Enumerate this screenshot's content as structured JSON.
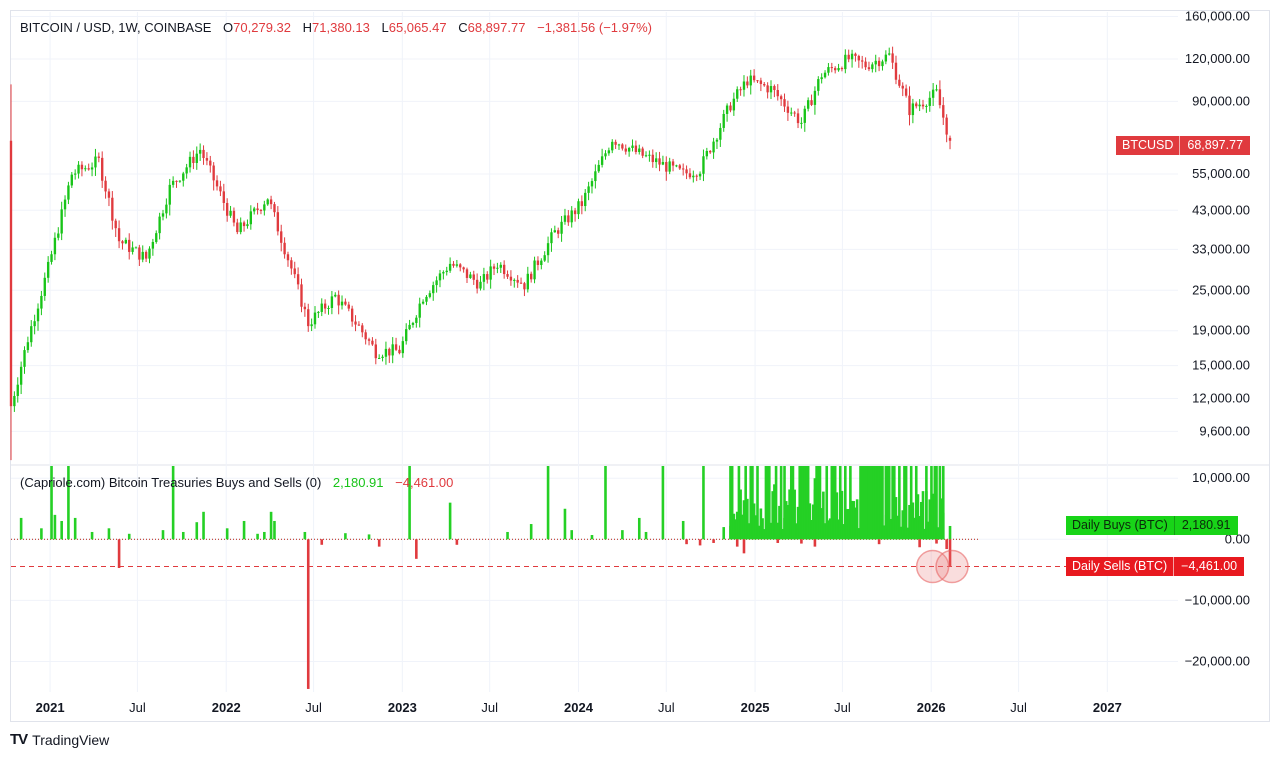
{
  "legend_price": {
    "symbol": "BITCOIN / USD, 1W, COINBASE",
    "o_label": "O",
    "o_value": "70,279.32",
    "h_label": "H",
    "h_value": "71,380.13",
    "l_label": "L",
    "l_value": "65,065.47",
    "c_label": "C",
    "c_value": "68,897.77",
    "change": "−1,381.56 (−1.97%)"
  },
  "legend_indicator": {
    "name": "(Capriole.com) Bitcoin Treasuries Buys and Sells (0)",
    "buy_value": "2,180.91",
    "sell_value": "−4,461.00"
  },
  "badges": {
    "price_label": "BTCUSD",
    "price_value": "68,897.77",
    "buys_label": "Daily Buys (BTC)",
    "buys_value": "2,180.91",
    "sells_label": "Daily Sells (BTC)",
    "sells_value": "−4,461.00"
  },
  "brand": {
    "name": "TradingView"
  },
  "colors": {
    "up": "#18c418",
    "down": "#e03a3e",
    "grid": "#f0f3fa",
    "text": "#131722"
  },
  "chart_data": [
    {
      "type": "candlestick",
      "title": "BITCOIN / USD, 1W, COINBASE",
      "scale": "log",
      "y_ticks": [
        "9,600.00",
        "12,000.00",
        "15,000.00",
        "19,000.00",
        "25,000.00",
        "33,000.00",
        "43,000.00",
        "55,000.00",
        "90,000.00",
        "120,000.00",
        "160,000.00"
      ],
      "y_tick_values": [
        9600,
        12000,
        15000,
        19000,
        25000,
        33000,
        43000,
        55000,
        90000,
        120000,
        160000
      ],
      "ylim": [
        7800,
        165000
      ],
      "x_ticks": [
        "2021",
        "Jul",
        "2022",
        "Jul",
        "2023",
        "Jul",
        "2024",
        "Jul",
        "2025",
        "Jul",
        "2026",
        "Jul",
        "2027"
      ],
      "x_tick_dates": [
        "2021-01-01",
        "2021-07-01",
        "2022-01-01",
        "2022-07-01",
        "2023-01-01",
        "2023-07-01",
        "2024-01-01",
        "2024-07-01",
        "2025-01-01",
        "2025-07-01",
        "2026-01-01",
        "2026-07-01",
        "2027-01-01"
      ],
      "xlim": [
        "2020-10-12",
        "2027-05-15"
      ],
      "close_keypoints": [
        [
          "2020-10-12",
          11400
        ],
        [
          "2020-11-16",
          18000
        ],
        [
          "2020-12-28",
          29000
        ],
        [
          "2021-02-15",
          55000
        ],
        [
          "2021-04-12",
          60000
        ],
        [
          "2021-05-24",
          35000
        ],
        [
          "2021-07-19",
          31000
        ],
        [
          "2021-09-06",
          50000
        ],
        [
          "2021-11-08",
          65000
        ],
        [
          "2022-01-24",
          37000
        ],
        [
          "2022-03-28",
          47000
        ],
        [
          "2022-05-16",
          29000
        ],
        [
          "2022-06-20",
          20000
        ],
        [
          "2022-08-15",
          24000
        ],
        [
          "2022-10-03",
          19500
        ],
        [
          "2022-11-07",
          16500
        ],
        [
          "2022-12-26",
          16600
        ],
        [
          "2023-02-13",
          24000
        ],
        [
          "2023-04-10",
          30000
        ],
        [
          "2023-06-12",
          26000
        ],
        [
          "2023-07-17",
          30000
        ],
        [
          "2023-09-11",
          26000
        ],
        [
          "2023-11-13",
          37000
        ],
        [
          "2024-01-08",
          45000
        ],
        [
          "2024-03-11",
          70000
        ],
        [
          "2024-05-06",
          63000
        ],
        [
          "2024-08-05",
          55000
        ],
        [
          "2024-09-09",
          57000
        ],
        [
          "2024-11-11",
          88000
        ],
        [
          "2024-12-16",
          104000
        ],
        [
          "2025-02-03",
          98000
        ],
        [
          "2025-04-07",
          78000
        ],
        [
          "2025-05-19",
          108000
        ],
        [
          "2025-07-14",
          120000
        ],
        [
          "2025-08-18",
          115000
        ],
        [
          "2025-10-06",
          123000
        ],
        [
          "2025-11-17",
          85000
        ],
        [
          "2026-01-12",
          95000
        ],
        [
          "2026-02-09",
          68898
        ]
      ],
      "last_bar": {
        "open": 70279.32,
        "high": 71380.13,
        "low": 65065.47,
        "close": 68897.77
      },
      "last_price_label": "68,897.77"
    },
    {
      "type": "bar",
      "title": "(Capriole.com) Bitcoin Treasuries Buys and Sells (0)",
      "y_ticks": [
        "10,000.00",
        "0.00",
        "−10,000.00",
        "−20,000.00"
      ],
      "y_tick_values": [
        10000,
        0,
        -10000,
        -20000
      ],
      "ylim": [
        -25000,
        12000
      ],
      "series": [
        {
          "name": "Daily Buys (BTC)",
          "last_value": 2180.91,
          "points": [
            [
              "2020-11-02",
              3500
            ],
            [
              "2020-12-14",
              1800
            ],
            [
              "2021-01-04",
              15000
            ],
            [
              "2021-01-11",
              4000
            ],
            [
              "2021-01-25",
              3000
            ],
            [
              "2021-02-08",
              15000
            ],
            [
              "2021-02-22",
              3500
            ],
            [
              "2021-03-29",
              1200
            ],
            [
              "2021-05-03",
              1800
            ],
            [
              "2021-06-14",
              900
            ],
            [
              "2021-08-23",
              1500
            ],
            [
              "2021-09-13",
              12000
            ],
            [
              "2021-10-04",
              1200
            ],
            [
              "2021-11-01",
              2800
            ],
            [
              "2021-11-15",
              4500
            ],
            [
              "2022-01-03",
              1800
            ],
            [
              "2022-02-07",
              3000
            ],
            [
              "2022-03-07",
              900
            ],
            [
              "2022-03-21",
              1200
            ],
            [
              "2022-04-04",
              4500
            ],
            [
              "2022-04-11",
              3000
            ],
            [
              "2022-06-13",
              1200
            ],
            [
              "2022-09-05",
              1000
            ],
            [
              "2022-10-24",
              800
            ],
            [
              "2023-01-16",
              14000
            ],
            [
              "2023-04-10",
              6000
            ],
            [
              "2023-08-07",
              1200
            ],
            [
              "2023-09-25",
              2500
            ],
            [
              "2023-10-30",
              15000
            ],
            [
              "2023-12-04",
              5000
            ],
            [
              "2023-12-18",
              1500
            ],
            [
              "2024-01-29",
              700
            ],
            [
              "2024-02-26",
              12000
            ],
            [
              "2024-04-01",
              1500
            ],
            [
              "2024-05-06",
              3500
            ],
            [
              "2024-05-20",
              1200
            ],
            [
              "2024-06-24",
              15000
            ],
            [
              "2024-08-05",
              3000
            ],
            [
              "2024-09-16",
              15000
            ],
            [
              "2024-10-28",
              2000
            ],
            [
              "2024-11-11",
              2200
            ],
            [
              "2024-11-25",
              1500
            ],
            [
              "2024-12-30",
              1200
            ],
            [
              "2025-02-10",
              9000
            ],
            [
              "2025-03-03",
              3500
            ],
            [
              "2025-03-24",
              2000
            ],
            [
              "2025-04-21",
              15000
            ],
            [
              "2025-05-05",
              10000
            ],
            [
              "2025-05-26",
              1800
            ],
            [
              "2025-06-16",
              1500
            ],
            [
              "2025-07-14",
              4500
            ],
            [
              "2025-08-25",
              6000
            ],
            [
              "2025-09-29",
              4000
            ],
            [
              "2025-10-20",
              1200
            ],
            [
              "2025-12-01",
              13000
            ],
            [
              "2025-12-22",
              14000
            ],
            [
              "2026-01-05",
              4500
            ],
            [
              "2026-01-26",
              15000
            ],
            [
              "2026-02-09",
              2180.91
            ]
          ]
        },
        {
          "name": "Daily Sells (BTC)",
          "last_value": -4461,
          "points": [
            [
              "2021-05-24",
              -4700
            ],
            [
              "2022-06-20",
              -24500
            ],
            [
              "2022-07-18",
              -900
            ],
            [
              "2022-11-14",
              -1200
            ],
            [
              "2023-01-30",
              -3200
            ],
            [
              "2023-04-24",
              -900
            ],
            [
              "2024-08-12",
              -800
            ],
            [
              "2024-09-09",
              -1000
            ],
            [
              "2024-10-07",
              -600
            ],
            [
              "2024-11-25",
              -1200
            ],
            [
              "2024-12-09",
              -2300
            ],
            [
              "2025-02-17",
              -600
            ],
            [
              "2025-04-07",
              -700
            ],
            [
              "2025-05-05",
              -1200
            ],
            [
              "2025-09-15",
              -800
            ],
            [
              "2025-12-08",
              -1300
            ],
            [
              "2026-01-12",
              -700
            ],
            [
              "2026-02-02",
              -1600
            ],
            [
              "2026-02-09",
              -4461
            ]
          ]
        }
      ],
      "reference_line": -4461,
      "highlighted_points": [
        "2026-02-02",
        "2026-02-09"
      ]
    }
  ]
}
